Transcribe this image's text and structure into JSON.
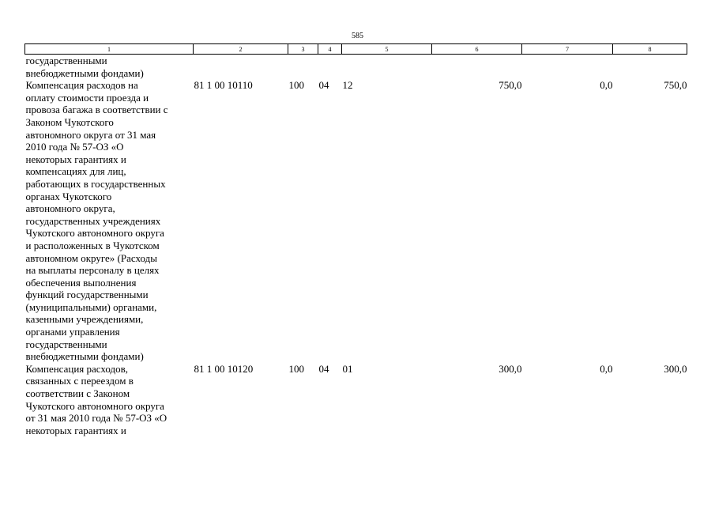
{
  "page_number": "585",
  "columns": [
    "1",
    "2",
    "3",
    "4",
    "5",
    "6",
    "7",
    "8"
  ],
  "rows": [
    {
      "name_lines": [
        "государственными",
        "внебюджетными фондами)"
      ],
      "code": "",
      "vr": "",
      "rz": "",
      "pr": "",
      "sum1": "",
      "sum2": "",
      "sum3": ""
    },
    {
      "name_lines": [
        "Компенсация расходов на",
        "оплату стоимости проезда и",
        "провоза багажа в соответствии с",
        "Законом Чукотского",
        "автономного округа от 31 мая",
        "2010 года № 57-ОЗ «О",
        "некоторых гарантиях и",
        "компенсациях для лиц,",
        "работающих в государственных",
        "органах Чукотского",
        "автономного округа,",
        "государственных учреждениях",
        "Чукотского автономного округа",
        "и расположенных в Чукотском",
        "автономном округе» (Расходы",
        "на выплаты персоналу в целях",
        "обеспечения выполнения",
        "функций государственными",
        "(муниципальными) органами,",
        "казенными учреждениями,",
        "органами управления",
        "государственными",
        "внебюджетными фондами)"
      ],
      "code": "81 1 00 10110",
      "vr": "100",
      "rz": "04",
      "pr": "12",
      "sum1": "750,0",
      "sum2": "0,0",
      "sum3": "750,0"
    },
    {
      "name_lines": [
        "Компенсация расходов,",
        "связанных с переездом в",
        "соответствии с Законом",
        "Чукотского автономного округа",
        "от 31 мая 2010 года № 57-ОЗ «О",
        "некоторых гарантиях и"
      ],
      "code": "81 1 00 10120",
      "vr": "100",
      "rz": "04",
      "pr": "01",
      "sum1": "300,0",
      "sum2": "0,0",
      "sum3": "300,0"
    }
  ]
}
